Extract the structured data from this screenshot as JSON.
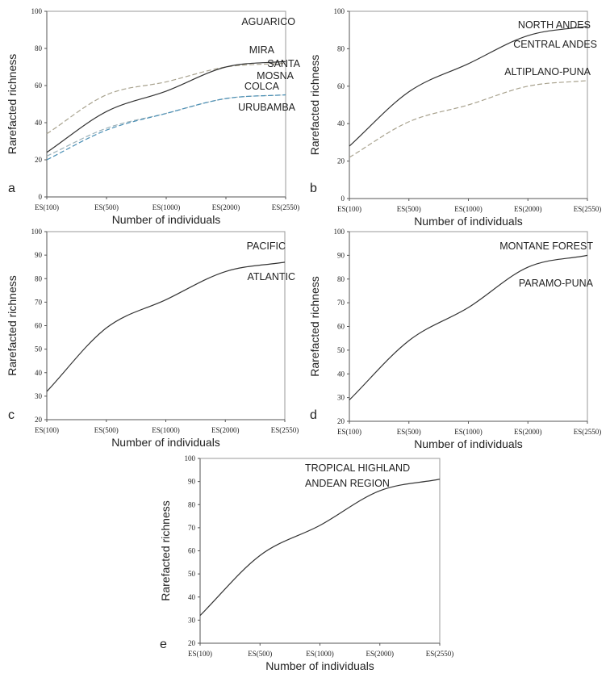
{
  "chart_data": [
    {
      "panel": "a",
      "type": "line",
      "xlabel": "Number of individuals",
      "ylabel": "Rarefacted richness",
      "categories": [
        "ES(100)",
        "ES(500)",
        "ES(1000)",
        "ES(2000)",
        "ES(2550)"
      ],
      "ylim": [
        0,
        100
      ],
      "yticks": [
        0,
        20,
        40,
        60,
        80,
        100
      ],
      "grid": false,
      "labels": [
        "AGUARICO",
        "MIRA",
        "SANTA",
        "MOSNA",
        "COLCA",
        "URUBAMBA"
      ],
      "series": [
        {
          "values": [
            34,
            55,
            62,
            70,
            72
          ],
          "color": "#a8a28e",
          "dash": "dashed"
        },
        {
          "values": [
            24,
            46,
            57,
            70,
            73
          ],
          "color": "#333333",
          "dash": "solid"
        },
        {
          "values": [
            22,
            37,
            45,
            53,
            55
          ],
          "color": "#9ab0b8",
          "dash": "dashed"
        },
        {
          "values": [
            20,
            36,
            45,
            53,
            55
          ],
          "color": "#4a8fb5",
          "dash": "dashed"
        }
      ]
    },
    {
      "panel": "b",
      "type": "line",
      "xlabel": "Number of individuals",
      "ylabel": "Rarefacted richness",
      "categories": [
        "ES(100)",
        "ES(500)",
        "ES(1000)",
        "ES(2000)",
        "ES(2550)"
      ],
      "ylim": [
        0,
        100
      ],
      "yticks": [
        0,
        20,
        40,
        60,
        80,
        100
      ],
      "grid": false,
      "labels": [
        "NORTH ANDES",
        "CENTRAL ANDES",
        "ALTIPLANO-PUNA"
      ],
      "series": [
        {
          "values": [
            28,
            57,
            72,
            87,
            92
          ],
          "color": "#333333",
          "dash": "solid"
        },
        {
          "values": [
            22,
            41,
            50,
            60,
            63
          ],
          "color": "#a8a28e",
          "dash": "dashed"
        }
      ]
    },
    {
      "panel": "c",
      "type": "line",
      "xlabel": "Number of individuals",
      "ylabel": "Rarefacted richness",
      "categories": [
        "ES(100)",
        "ES(500)",
        "ES(1000)",
        "ES(2000)",
        "ES(2550)"
      ],
      "ylim": [
        20,
        100
      ],
      "yticks": [
        20,
        30,
        40,
        50,
        60,
        70,
        80,
        90,
        100
      ],
      "grid": false,
      "labels": [
        "PACIFIC",
        "ATLANTIC"
      ],
      "series": [
        {
          "values": [
            32,
            59,
            71,
            83,
            87
          ],
          "color": "#333333",
          "dash": "solid"
        }
      ]
    },
    {
      "panel": "d",
      "type": "line",
      "xlabel": "Number of individuals",
      "ylabel": "Rarefacted richness",
      "categories": [
        "ES(100)",
        "ES(500)",
        "ES(1000)",
        "ES(2000)",
        "ES(2550)"
      ],
      "ylim": [
        20,
        100
      ],
      "yticks": [
        20,
        30,
        40,
        50,
        60,
        70,
        80,
        90,
        100
      ],
      "grid": false,
      "labels": [
        "MONTANE FOREST",
        "PARAMO-PUNA"
      ],
      "series": [
        {
          "values": [
            29,
            54,
            68,
            85,
            90
          ],
          "color": "#333333",
          "dash": "solid"
        }
      ]
    },
    {
      "panel": "e",
      "type": "line",
      "xlabel": "Number of individuals",
      "ylabel": "Rarefacted richness",
      "categories": [
        "ES(100)",
        "ES(500)",
        "ES(1000)",
        "ES(2000)",
        "ES(2550)"
      ],
      "ylim": [
        20,
        100
      ],
      "yticks": [
        20,
        30,
        40,
        50,
        60,
        70,
        80,
        90,
        100
      ],
      "grid": false,
      "labels": [
        "TROPICAL HIGHLAND",
        "ANDEAN REGION"
      ],
      "series": [
        {
          "values": [
            32,
            58,
            71,
            86,
            91
          ],
          "color": "#333333",
          "dash": "solid"
        }
      ]
    }
  ]
}
